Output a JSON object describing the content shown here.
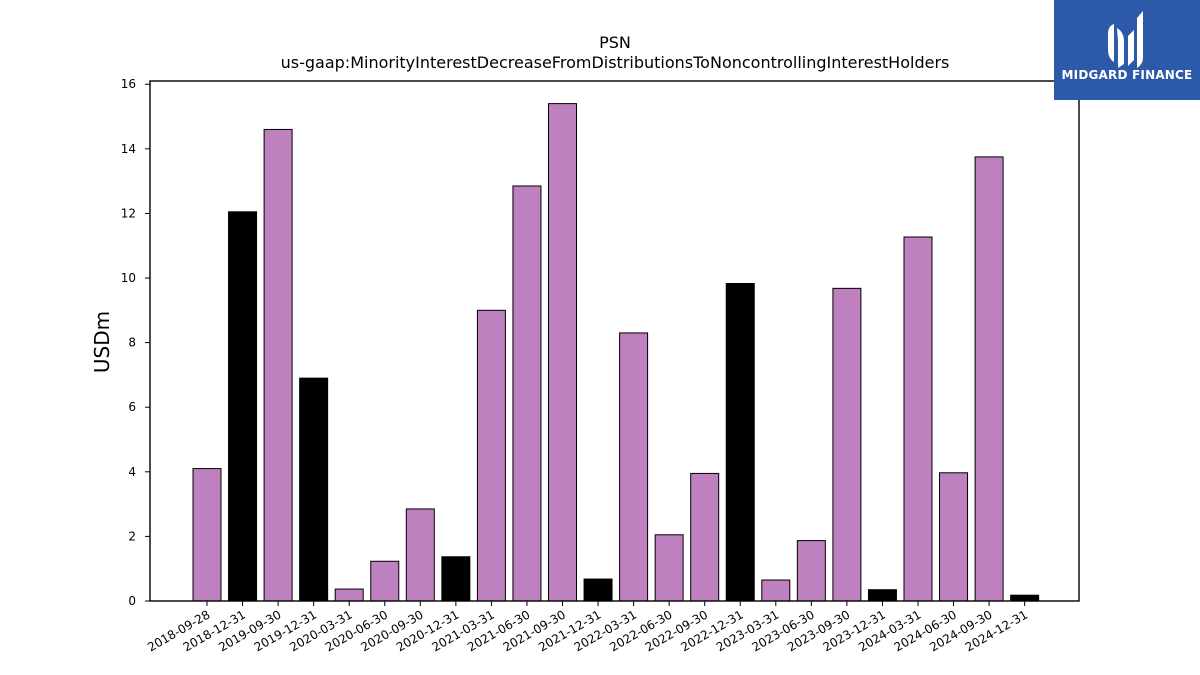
{
  "chart_data": {
    "type": "bar",
    "title": "PSN",
    "subtitle": "us-gaap:MinorityInterestDecreaseFromDistributionsToNoncontrollingInterestHolders",
    "xlabel": "",
    "ylabel": "USDm",
    "ylim": [
      0,
      16.1
    ],
    "yticks": [
      0,
      2,
      4,
      6,
      8,
      10,
      12,
      14,
      16
    ],
    "grid": false,
    "categories": [
      "2018-09-28",
      "2018-12-31",
      "2019-09-30",
      "2019-12-31",
      "2020-03-31",
      "2020-06-30",
      "2020-09-30",
      "2020-12-31",
      "2021-03-31",
      "2021-06-30",
      "2021-09-30",
      "2021-12-31",
      "2022-03-31",
      "2022-06-30",
      "2022-09-30",
      "2022-12-31",
      "2023-03-31",
      "2023-06-30",
      "2023-09-30",
      "2023-12-31",
      "2024-03-31",
      "2024-06-30",
      "2024-09-30",
      "2024-12-31"
    ],
    "values": [
      4.1,
      12.05,
      14.6,
      6.9,
      0.37,
      1.23,
      2.85,
      1.37,
      9.0,
      12.85,
      15.4,
      0.68,
      8.3,
      2.05,
      3.95,
      9.83,
      0.65,
      1.87,
      9.68,
      0.35,
      11.27,
      3.97,
      13.75,
      0.18
    ],
    "colors": {
      "quarter": "#bf80bf",
      "year_end": "#000000",
      "edge": "#000000"
    },
    "year_end_flags": [
      false,
      true,
      false,
      true,
      false,
      false,
      false,
      true,
      false,
      false,
      false,
      true,
      false,
      false,
      false,
      true,
      false,
      false,
      false,
      true,
      false,
      false,
      false,
      true
    ]
  },
  "logo": {
    "text": "MIDGARD FINANCE",
    "background": "#2c5aa8"
  }
}
